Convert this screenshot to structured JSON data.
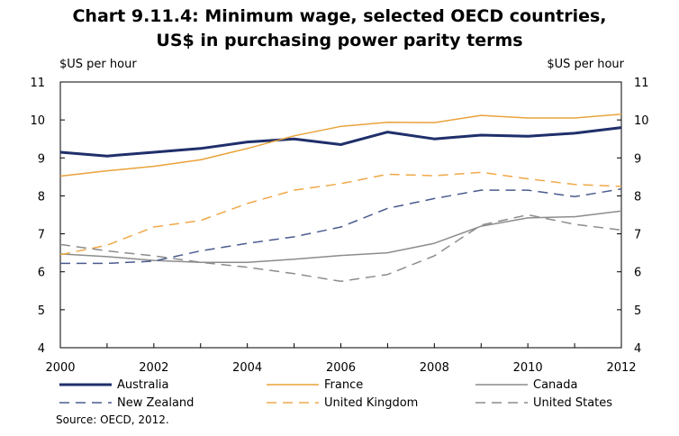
{
  "chart_data": {
    "type": "line",
    "title_line1": "Chart 9.11.4: Minimum wage, selected OECD countries,",
    "title_line2": "US$ in purchasing power parity terms",
    "ylabel_left": "$US per hour",
    "ylabel_right": "$US per hour",
    "source": "Source: OECD, 2012.",
    "ylim": [
      4,
      11
    ],
    "xlim": [
      2000,
      2012
    ],
    "y_ticks": [
      4,
      5,
      6,
      7,
      8,
      9,
      10,
      11
    ],
    "x_ticks": [
      2000,
      2002,
      2004,
      2006,
      2008,
      2010,
      2012
    ],
    "grid": false,
    "legend_position": "bottom",
    "x": [
      2000,
      2001,
      2002,
      2003,
      2004,
      2005,
      2006,
      2007,
      2008,
      2009,
      2010,
      2011,
      2012
    ],
    "series": [
      {
        "name": "Australia",
        "color": "#1f2f6b",
        "style": "solid",
        "width": 3,
        "values": [
          9.15,
          9.05,
          9.15,
          9.25,
          9.42,
          9.5,
          9.35,
          9.68,
          9.5,
          9.6,
          9.57,
          9.65,
          9.8
        ]
      },
      {
        "name": "France",
        "color": "#e8a33a",
        "style": "solid",
        "width": 1.5,
        "values": [
          8.52,
          8.66,
          8.78,
          8.95,
          9.25,
          9.58,
          9.83,
          9.94,
          9.93,
          10.12,
          10.05,
          10.05,
          10.15
        ]
      },
      {
        "name": "Canada",
        "color": "#8c8c8c",
        "style": "solid",
        "width": 1.5,
        "values": [
          6.47,
          6.4,
          6.3,
          6.25,
          6.25,
          6.33,
          6.43,
          6.5,
          6.75,
          7.2,
          7.42,
          7.45,
          7.6
        ]
      },
      {
        "name": "New Zealand",
        "color": "#4a5b8f",
        "style": "dash",
        "width": 1.5,
        "values": [
          6.22,
          6.22,
          6.28,
          6.55,
          6.75,
          6.92,
          7.18,
          7.67,
          7.93,
          8.15,
          8.15,
          7.98,
          8.18
        ]
      },
      {
        "name": "United Kingdom",
        "color": "#f0a848",
        "style": "dash",
        "width": 1.5,
        "values": [
          6.45,
          6.7,
          7.18,
          7.35,
          7.8,
          8.15,
          8.32,
          8.57,
          8.53,
          8.62,
          8.45,
          8.3,
          8.25
        ]
      },
      {
        "name": "United States",
        "color": "#8c8c8c",
        "style": "dash",
        "width": 1.5,
        "values": [
          6.72,
          6.55,
          6.42,
          6.25,
          6.12,
          5.95,
          5.75,
          5.93,
          6.42,
          7.23,
          7.5,
          7.25,
          7.1
        ]
      }
    ]
  }
}
